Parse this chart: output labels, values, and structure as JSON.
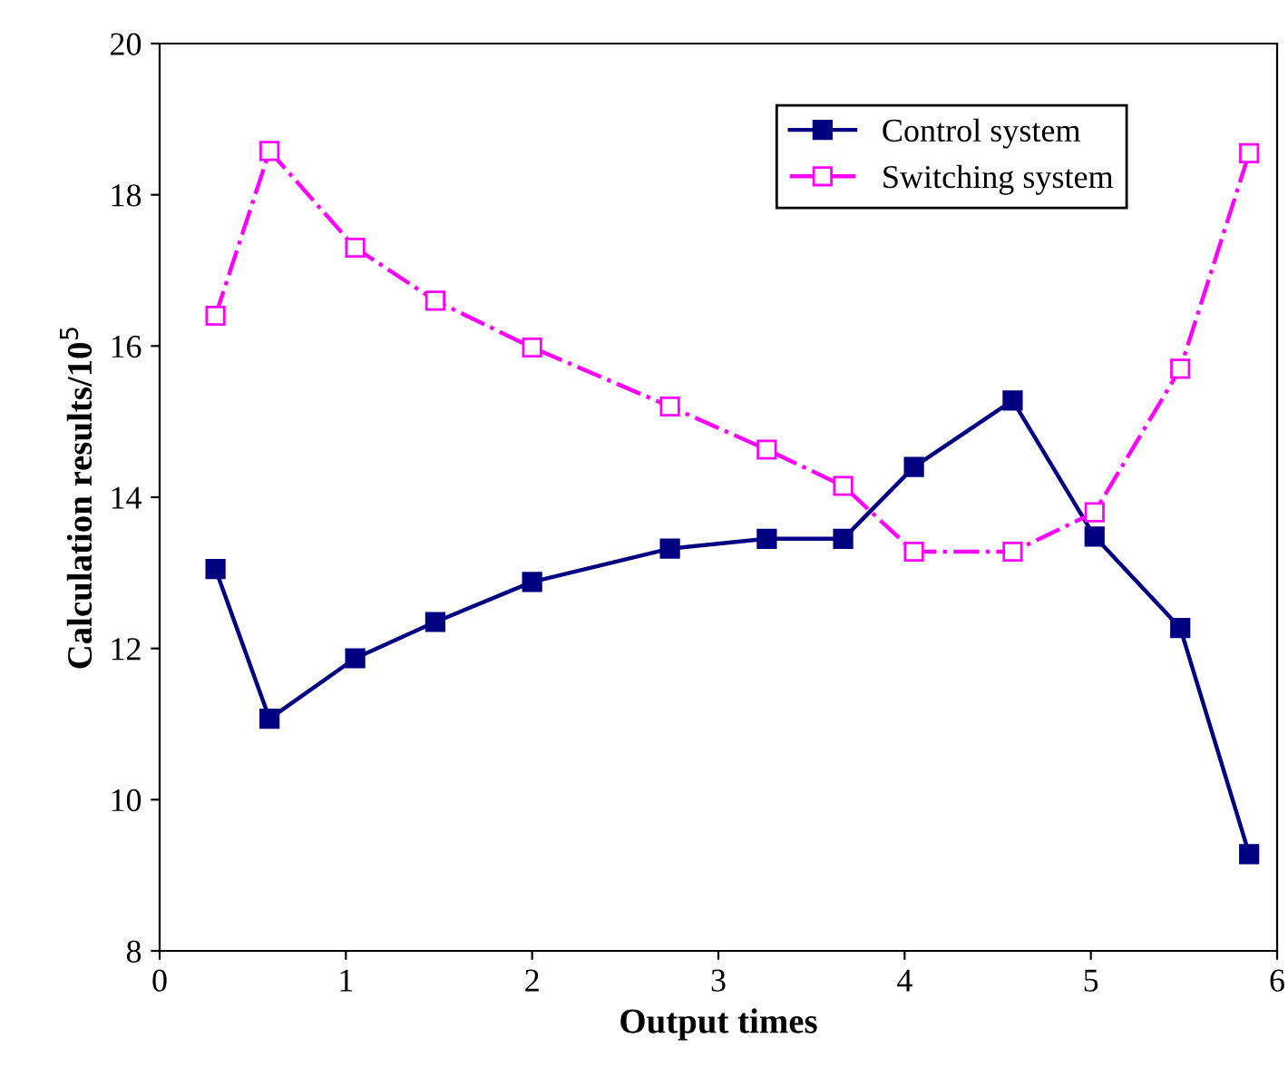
{
  "chart_data": {
    "type": "line",
    "xlabel": "Output times",
    "ylabel": "Calculation results/10$^{5}$",
    "x": [
      0.3,
      0.59,
      1.05,
      1.48,
      2.0,
      2.74,
      3.26,
      3.67,
      4.05,
      4.58,
      5.02,
      5.48,
      5.85
    ],
    "series": [
      {
        "name": "Control system",
        "color": "#000080",
        "line_style": "solid",
        "values": [
          13.05,
          11.07,
          11.87,
          12.35,
          12.88,
          13.32,
          13.45,
          13.45,
          14.4,
          15.28,
          13.48,
          12.27,
          9.28
        ]
      },
      {
        "name": "Switching system",
        "color": "#ff00ff",
        "line_style": "dash-dot",
        "values": [
          16.4,
          18.58,
          17.3,
          16.6,
          15.98,
          15.2,
          14.63,
          14.15,
          13.28,
          13.28,
          13.8,
          15.7,
          18.55
        ]
      }
    ],
    "marker": "square",
    "xlim": [
      0,
      6
    ],
    "xticks": [
      0,
      1,
      2,
      3,
      4,
      5,
      6
    ],
    "ylim": [
      8,
      20
    ],
    "yticks": [
      8,
      10,
      12,
      14,
      16,
      18,
      20
    ],
    "grid": false,
    "legend": "top right"
  }
}
